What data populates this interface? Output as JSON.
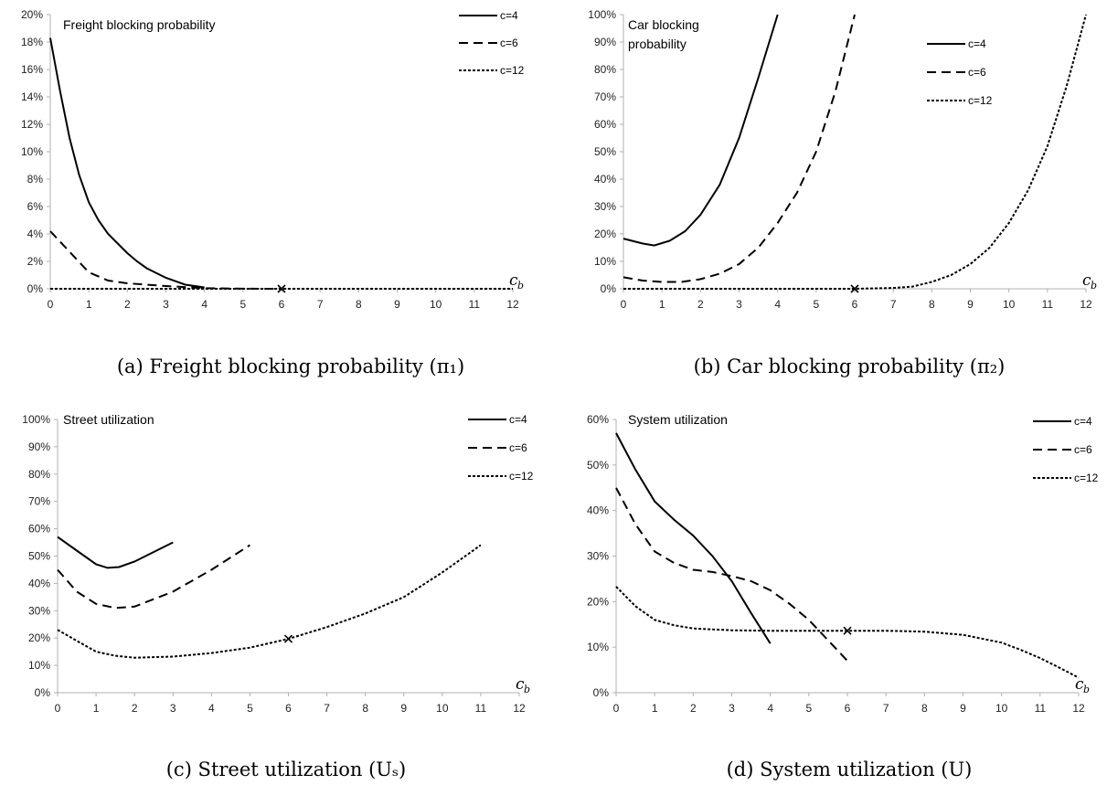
{
  "chart_data": [
    {
      "id": "a",
      "type": "line",
      "title": "Freight blocking probability",
      "caption": "(a) Freight blocking probability (π₁)",
      "xlabel": "c",
      "xlabel_sub": "b",
      "x_ticks": [
        0,
        1,
        2,
        3,
        4,
        5,
        6,
        7,
        8,
        9,
        10,
        11,
        12
      ],
      "xlim": [
        0,
        12
      ],
      "ylim": [
        0,
        0.2
      ],
      "y_ticks": [
        0,
        0.02,
        0.04,
        0.06,
        0.08,
        0.1,
        0.12,
        0.14,
        0.16,
        0.18,
        0.2
      ],
      "y_tick_labels": [
        "0%",
        "2%",
        "4%",
        "6%",
        "8%",
        "10%",
        "12%",
        "14%",
        "16%",
        "18%",
        "20%"
      ],
      "legend_position": "top-right",
      "series": [
        {
          "name": "c=4",
          "dash": "solid",
          "x": [
            0,
            0.25,
            0.5,
            0.75,
            1,
            1.25,
            1.5,
            1.75,
            2,
            2.25,
            2.5,
            3,
            3.5,
            4
          ],
          "y": [
            0.183,
            0.145,
            0.11,
            0.083,
            0.063,
            0.05,
            0.04,
            0.033,
            0.026,
            0.02,
            0.015,
            0.008,
            0.003,
            0.001
          ]
        },
        {
          "name": "c=6",
          "dash": "longdash",
          "x": [
            0,
            0.5,
            1,
            1.5,
            2,
            3,
            4,
            5,
            6
          ],
          "y": [
            0.042,
            0.027,
            0.012,
            0.006,
            0.004,
            0.002,
            0.0005,
            0.0001,
            0
          ]
        },
        {
          "name": "c=12",
          "dash": "dotted",
          "x": [
            0,
            3,
            6,
            9,
            12
          ],
          "y": [
            0,
            0,
            0,
            0,
            0
          ]
        }
      ],
      "markers": [
        {
          "x": 6,
          "y": 0
        }
      ]
    },
    {
      "id": "b",
      "type": "line",
      "title": "Car blocking probability",
      "caption": "(b) Car blocking probability (π₂)",
      "xlabel": "c",
      "xlabel_sub": "b",
      "x_ticks": [
        0,
        1,
        2,
        3,
        4,
        5,
        6,
        7,
        8,
        9,
        10,
        11,
        12
      ],
      "xlim": [
        0,
        12
      ],
      "ylim": [
        0,
        1
      ],
      "y_ticks": [
        0,
        0.1,
        0.2,
        0.3,
        0.4,
        0.5,
        0.6,
        0.7,
        0.8,
        0.9,
        1
      ],
      "y_tick_labels": [
        "0%",
        "10%",
        "20%",
        "30%",
        "40%",
        "50%",
        "60%",
        "70%",
        "80%",
        "90%",
        "100%"
      ],
      "legend_position": "top-right",
      "series": [
        {
          "name": "c=4",
          "dash": "solid",
          "x": [
            0,
            0.5,
            0.8,
            1.2,
            1.6,
            2,
            2.5,
            3,
            3.5,
            4
          ],
          "y": [
            0.183,
            0.165,
            0.158,
            0.175,
            0.21,
            0.27,
            0.38,
            0.55,
            0.77,
            1.0
          ]
        },
        {
          "name": "c=6",
          "dash": "longdash",
          "x": [
            0,
            0.5,
            1,
            1.5,
            2,
            2.5,
            3,
            3.5,
            4,
            4.5,
            5,
            5.5,
            6
          ],
          "y": [
            0.042,
            0.03,
            0.025,
            0.025,
            0.035,
            0.055,
            0.09,
            0.15,
            0.24,
            0.35,
            0.5,
            0.72,
            1.0
          ]
        },
        {
          "name": "c=12",
          "dash": "dotted",
          "x": [
            0,
            6,
            7,
            7.5,
            8,
            8.5,
            9,
            9.5,
            10,
            10.5,
            11,
            11.5,
            12
          ],
          "y": [
            0,
            0,
            0.003,
            0.008,
            0.025,
            0.05,
            0.09,
            0.15,
            0.24,
            0.36,
            0.52,
            0.74,
            1.0
          ]
        }
      ],
      "markers": [
        {
          "x": 6,
          "y": 0
        }
      ]
    },
    {
      "id": "c",
      "type": "line",
      "title": "Street utilization",
      "caption": "(c) Street utilization (Uₛ)",
      "xlabel": "c",
      "xlabel_sub": "b",
      "x_ticks": [
        0,
        1,
        2,
        3,
        4,
        5,
        6,
        7,
        8,
        9,
        10,
        11,
        12
      ],
      "xlim": [
        0,
        12
      ],
      "ylim": [
        0,
        1
      ],
      "y_ticks": [
        0,
        0.1,
        0.2,
        0.3,
        0.4,
        0.5,
        0.6,
        0.7,
        0.8,
        0.9,
        1
      ],
      "y_tick_labels": [
        "0%",
        "10%",
        "20%",
        "30%",
        "40%",
        "50%",
        "60%",
        "70%",
        "80%",
        "90%",
        "100%"
      ],
      "legend_position": "top-right",
      "series": [
        {
          "name": "c=4",
          "dash": "solid",
          "x": [
            0,
            0.5,
            1,
            1.3,
            1.6,
            2,
            2.5,
            3
          ],
          "y": [
            0.57,
            0.52,
            0.47,
            0.457,
            0.46,
            0.48,
            0.515,
            0.55
          ]
        },
        {
          "name": "c=6",
          "dash": "longdash",
          "x": [
            0,
            0.5,
            1,
            1.5,
            2,
            3,
            4,
            5
          ],
          "y": [
            0.45,
            0.37,
            0.325,
            0.31,
            0.315,
            0.37,
            0.45,
            0.54
          ]
        },
        {
          "name": "c=12",
          "dash": "dotted",
          "x": [
            0,
            0.5,
            1,
            1.5,
            2,
            3,
            4,
            5,
            6,
            7,
            8,
            9,
            10,
            11
          ],
          "y": [
            0.23,
            0.19,
            0.15,
            0.135,
            0.128,
            0.132,
            0.145,
            0.165,
            0.197,
            0.24,
            0.29,
            0.35,
            0.44,
            0.54
          ]
        }
      ],
      "markers": [
        {
          "x": 6,
          "y": 0.197
        }
      ]
    },
    {
      "id": "d",
      "type": "line",
      "title": "System utilization",
      "caption": "(d) System utilization (U)",
      "xlabel": "c",
      "xlabel_sub": "b",
      "x_ticks": [
        0,
        1,
        2,
        3,
        4,
        5,
        6,
        7,
        8,
        9,
        10,
        11,
        12
      ],
      "xlim": [
        0,
        12
      ],
      "ylim": [
        0,
        0.6
      ],
      "y_ticks": [
        0,
        0.1,
        0.2,
        0.3,
        0.4,
        0.5,
        0.6
      ],
      "y_tick_labels": [
        "0%",
        "10%",
        "20%",
        "30%",
        "40%",
        "50%",
        "60%"
      ],
      "legend_position": "top-right",
      "series": [
        {
          "name": "c=4",
          "dash": "solid",
          "x": [
            0,
            0.5,
            1,
            1.5,
            2,
            2.5,
            3,
            3.5,
            4
          ],
          "y": [
            0.57,
            0.49,
            0.42,
            0.38,
            0.345,
            0.3,
            0.245,
            0.175,
            0.108
          ]
        },
        {
          "name": "c=6",
          "dash": "longdash",
          "x": [
            0,
            0.5,
            1,
            1.5,
            2,
            2.5,
            3,
            3.5,
            4,
            4.5,
            5,
            5.5,
            6
          ],
          "y": [
            0.45,
            0.37,
            0.31,
            0.285,
            0.27,
            0.265,
            0.256,
            0.245,
            0.225,
            0.195,
            0.16,
            0.115,
            0.07
          ]
        },
        {
          "name": "c=12",
          "dash": "dotted",
          "x": [
            0,
            0.5,
            1,
            1.5,
            2,
            3,
            4,
            5,
            6,
            7,
            8,
            9,
            10,
            10.5,
            11,
            11.5,
            12
          ],
          "y": [
            0.233,
            0.19,
            0.16,
            0.148,
            0.141,
            0.137,
            0.136,
            0.136,
            0.136,
            0.136,
            0.134,
            0.127,
            0.11,
            0.094,
            0.076,
            0.055,
            0.033
          ]
        }
      ],
      "markers": [
        {
          "x": 6,
          "y": 0.136
        }
      ]
    }
  ]
}
